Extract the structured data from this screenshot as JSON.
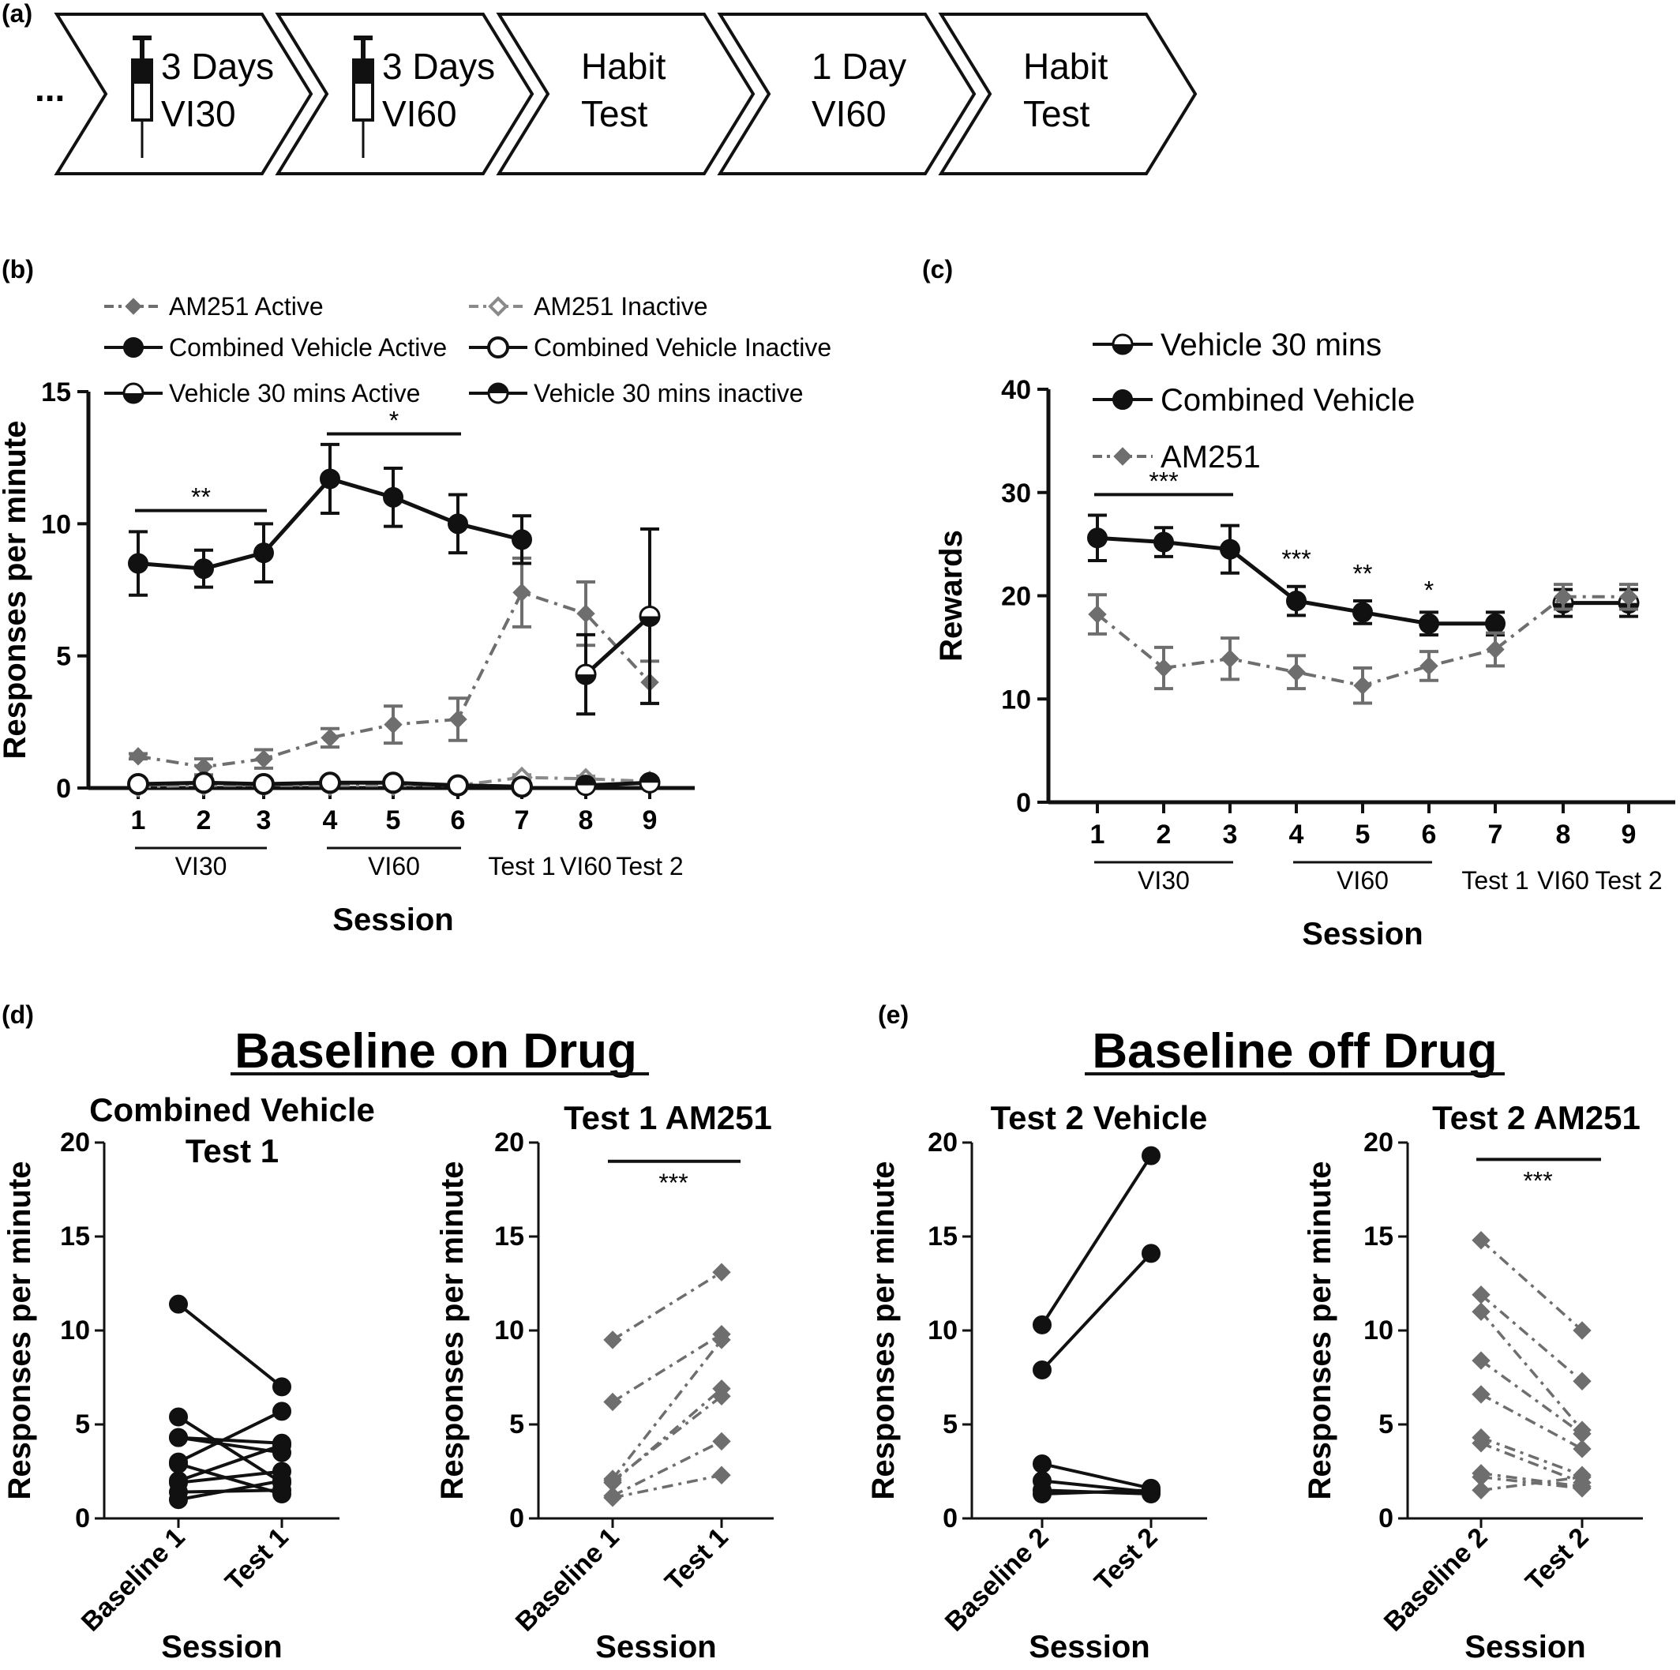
{
  "panel_labels": [
    "(a)",
    "(b)",
    "(c)",
    "(d)",
    "(e)"
  ],
  "timeline": {
    "ellipsis": "...",
    "steps": [
      {
        "line1": "3 Days",
        "line2": "VI30",
        "icon": "syringe-icon"
      },
      {
        "line1": "3 Days",
        "line2": "VI60",
        "icon": "syringe-icon"
      },
      {
        "line1": "Habit",
        "line2": "Test",
        "icon": ""
      },
      {
        "line1": "1 Day",
        "line2": "VI60",
        "icon": ""
      },
      {
        "line1": "Habit",
        "line2": "Test",
        "icon": ""
      }
    ]
  },
  "chart_data": [
    {
      "id": "b",
      "type": "line",
      "ylabel": "Responses per minute",
      "xlabel": "Session",
      "ylim": [
        0,
        15
      ],
      "yticks": [
        0,
        5,
        10,
        15
      ],
      "x": [
        "1",
        "2",
        "3",
        "4",
        "5",
        "6",
        "7",
        "8",
        "9"
      ],
      "groups": [
        {
          "label": "VI30",
          "from": "1",
          "to": "3",
          "underline": true
        },
        {
          "label": "VI60",
          "from": "4",
          "to": "6",
          "underline": true
        },
        {
          "label": "Test 1",
          "from": "7",
          "to": "7",
          "underline": false
        },
        {
          "label": "VI60",
          "from": "8",
          "to": "8",
          "underline": false
        },
        {
          "label": "Test 2",
          "from": "9",
          "to": "9",
          "underline": false
        }
      ],
      "legend": [
        "AM251 Active",
        "AM251 Inactive",
        "Combined Vehicle Active",
        "Combined Vehicle Inactive",
        "Vehicle 30 mins Active",
        "Vehicle 30 mins inactive"
      ],
      "series": [
        {
          "name": "AM251 Active",
          "color": "#6e6e6e",
          "marker": "diamond",
          "dash": "dashdot",
          "x": [
            "1",
            "2",
            "3",
            "4",
            "5",
            "6",
            "7",
            "8",
            "9"
          ],
          "values": [
            1.2,
            0.8,
            1.1,
            1.9,
            2.4,
            2.6,
            7.4,
            6.6,
            4.0
          ],
          "err": [
            0.1,
            0.3,
            0.35,
            0.35,
            0.7,
            0.8,
            1.3,
            1.2,
            0.8
          ]
        },
        {
          "name": "AM251 Inactive",
          "color": "#8a8a8a",
          "marker": "diamond-open",
          "dash": "dashdot",
          "x": [
            "1",
            "2",
            "3",
            "4",
            "5",
            "6",
            "7",
            "8",
            "9"
          ],
          "values": [
            0.05,
            0.1,
            0.1,
            0.1,
            0.1,
            0.1,
            0.4,
            0.35,
            0.25
          ],
          "err": [
            0.03,
            0.05,
            0.05,
            0.05,
            0.05,
            0.05,
            0.1,
            0.1,
            0.1
          ]
        },
        {
          "name": "Combined Vehicle Active",
          "color": "#111111",
          "marker": "circle",
          "dash": "solid",
          "x": [
            "1",
            "2",
            "3",
            "4",
            "5",
            "6",
            "7"
          ],
          "values": [
            8.5,
            8.3,
            8.9,
            11.7,
            11.0,
            10.0,
            9.4
          ],
          "err": [
            1.2,
            0.7,
            1.1,
            1.3,
            1.1,
            1.1,
            0.9
          ]
        },
        {
          "name": "Combined Vehicle Inactive",
          "color": "#111111",
          "marker": "circle-open",
          "dash": "solid",
          "x": [
            "1",
            "2",
            "3",
            "4",
            "5",
            "6",
            "7"
          ],
          "values": [
            0.15,
            0.2,
            0.15,
            0.2,
            0.2,
            0.1,
            0.05
          ],
          "err": [
            0.05,
            0.05,
            0.05,
            0.05,
            0.05,
            0.05,
            0.05
          ]
        },
        {
          "name": "Vehicle 30 mins Active",
          "color": "#111111",
          "marker": "circle-half",
          "dash": "solid",
          "x": [
            "8",
            "9"
          ],
          "values": [
            4.3,
            6.5
          ],
          "err": [
            1.5,
            3.3
          ]
        },
        {
          "name": "Vehicle 30 mins inactive",
          "color": "#111111",
          "marker": "circle-half-top",
          "dash": "solid",
          "x": [
            "8",
            "9"
          ],
          "values": [
            0.1,
            0.2
          ],
          "err": [
            0.05,
            0.05
          ]
        }
      ],
      "significance": [
        {
          "label": "**",
          "from": "1",
          "to": "3",
          "y": 10.5
        },
        {
          "label": "*",
          "from": "4",
          "to": "6",
          "y": 13.4
        }
      ]
    },
    {
      "id": "c",
      "type": "line",
      "ylabel": "Rewards",
      "xlabel": "Session",
      "ylim": [
        0,
        40
      ],
      "yticks": [
        0,
        10,
        20,
        30,
        40
      ],
      "x": [
        "1",
        "2",
        "3",
        "4",
        "5",
        "6",
        "7",
        "8",
        "9"
      ],
      "groups": [
        {
          "label": "VI30",
          "from": "1",
          "to": "3",
          "underline": true
        },
        {
          "label": "VI60",
          "from": "4",
          "to": "6",
          "underline": true
        },
        {
          "label": "Test 1",
          "from": "7",
          "to": "7",
          "underline": false
        },
        {
          "label": "VI60",
          "from": "8",
          "to": "8",
          "underline": false
        },
        {
          "label": "Test 2",
          "from": "9",
          "to": "9",
          "underline": false
        }
      ],
      "legend": [
        "Vehicle 30 mins",
        "Combined Vehicle",
        "AM251"
      ],
      "series": [
        {
          "name": "Vehicle 30 mins",
          "color": "#111111",
          "marker": "circle-half",
          "dash": "solid",
          "x": [
            "8",
            "9"
          ],
          "values": [
            19.3,
            19.3
          ],
          "err": [
            1.3,
            1.3
          ]
        },
        {
          "name": "Combined Vehicle",
          "color": "#111111",
          "marker": "circle",
          "dash": "solid",
          "x": [
            "1",
            "2",
            "3",
            "4",
            "5",
            "6",
            "7"
          ],
          "values": [
            25.6,
            25.2,
            24.5,
            19.5,
            18.4,
            17.3,
            17.3
          ],
          "err": [
            2.2,
            1.4,
            2.3,
            1.4,
            1.1,
            1.1,
            1.1
          ]
        },
        {
          "name": "AM251",
          "color": "#6e6e6e",
          "marker": "diamond",
          "dash": "dashdot",
          "x": [
            "1",
            "2",
            "3",
            "4",
            "5",
            "6",
            "7",
            "8",
            "9"
          ],
          "values": [
            18.2,
            13.0,
            13.9,
            12.6,
            11.3,
            13.2,
            14.8,
            19.9,
            19.9
          ],
          "err": [
            1.9,
            2.0,
            2.0,
            1.6,
            1.7,
            1.4,
            1.6,
            1.2,
            1.2
          ]
        }
      ],
      "significance": [
        {
          "label": "***",
          "from": "1",
          "to": "3",
          "y": 29.8,
          "line": true
        },
        {
          "label": "***",
          "from": "4",
          "to": "4",
          "y": 22.7,
          "line": false
        },
        {
          "label": "**",
          "from": "5",
          "to": "5",
          "y": 21.3,
          "line": false
        },
        {
          "label": "*",
          "from": "6",
          "to": "6",
          "y": 19.7,
          "line": false
        }
      ]
    },
    {
      "id": "d1",
      "type": "line",
      "title": "Combined Vehicle Test 1",
      "ylabel": "Responses per minute",
      "xlabel": "Session",
      "categories": [
        "Baseline 1",
        "Test 1"
      ],
      "ylim": [
        0,
        20
      ],
      "yticks": [
        0,
        5,
        10,
        15,
        20
      ],
      "marker": "circle",
      "color": "#111111",
      "dash": "solid",
      "pairs": [
        [
          11.4,
          7.0
        ],
        [
          5.4,
          1.9
        ],
        [
          4.3,
          3.5
        ],
        [
          4.3,
          4.0
        ],
        [
          3.0,
          5.7
        ],
        [
          2.9,
          1.3
        ],
        [
          2.0,
          3.9
        ],
        [
          1.9,
          2.5
        ],
        [
          1.4,
          1.5
        ],
        [
          1.0,
          2.0
        ]
      ]
    },
    {
      "id": "d2",
      "type": "line",
      "title": "Test 1 AM251",
      "ylabel": "Responses per minute",
      "xlabel": "Session",
      "categories": [
        "Baseline 1",
        "Test 1"
      ],
      "ylim": [
        0,
        20
      ],
      "yticks": [
        0,
        5,
        10,
        15,
        20
      ],
      "marker": "diamond",
      "color": "#6e6e6e",
      "dash": "dashdot",
      "pairs": [
        [
          9.5,
          13.1
        ],
        [
          6.2,
          9.8
        ],
        [
          2.1,
          9.5
        ],
        [
          1.9,
          6.9
        ],
        [
          2.0,
          6.5
        ],
        [
          1.2,
          4.1
        ],
        [
          1.1,
          2.3
        ]
      ],
      "significance": {
        "label": "***",
        "y": 19.0
      }
    },
    {
      "id": "e1",
      "type": "line",
      "title": "Test 2 Vehicle",
      "ylabel": "Responses per minute",
      "xlabel": "Session",
      "categories": [
        "Baseline 2",
        "Test 2"
      ],
      "ylim": [
        0,
        20
      ],
      "yticks": [
        0,
        5,
        10,
        15,
        20
      ],
      "marker": "circle",
      "color": "#111111",
      "dash": "solid",
      "pairs": [
        [
          10.3,
          19.3
        ],
        [
          7.9,
          14.1
        ],
        [
          2.9,
          1.6
        ],
        [
          2.0,
          1.4
        ],
        [
          1.5,
          1.3
        ],
        [
          1.3,
          1.5
        ]
      ]
    },
    {
      "id": "e2",
      "type": "line",
      "title": "Test 2 AM251",
      "ylabel": "Responses per minute",
      "xlabel": "Session",
      "categories": [
        "Baseline 2",
        "Test 2"
      ],
      "ylim": [
        0,
        20
      ],
      "yticks": [
        0,
        5,
        10,
        15,
        20
      ],
      "marker": "diamond",
      "color": "#6e6e6e",
      "dash": "dashdot",
      "pairs": [
        [
          14.8,
          10.0
        ],
        [
          11.9,
          7.3
        ],
        [
          11.0,
          4.7
        ],
        [
          8.4,
          4.5
        ],
        [
          6.6,
          3.7
        ],
        [
          4.3,
          2.3
        ],
        [
          4.0,
          1.9
        ],
        [
          2.4,
          1.7
        ],
        [
          2.2,
          1.6
        ],
        [
          1.5,
          2.2
        ]
      ],
      "significance": {
        "label": "***",
        "y": 19.1
      }
    }
  ],
  "group_titles": {
    "d": "Baseline on Drug",
    "e": "Baseline off Drug"
  }
}
